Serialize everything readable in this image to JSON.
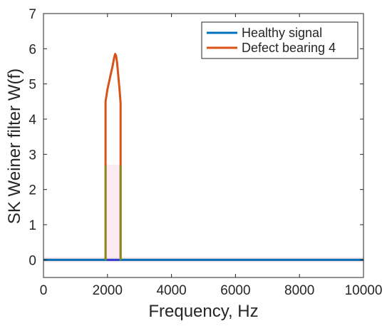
{
  "chart_data": {
    "type": "line",
    "title": "",
    "xlabel": "Frequency, Hz",
    "ylabel": "SK Weiner filter W(f)",
    "xlim": [
      0,
      10000
    ],
    "ylim": [
      -0.5,
      7
    ],
    "xticks": [
      "0",
      "2000",
      "4000",
      "6000",
      "8000",
      "10000"
    ],
    "xtick_values": [
      0,
      2000,
      4000,
      6000,
      8000,
      10000
    ],
    "yticks": [
      "0",
      "1",
      "2",
      "3",
      "4",
      "5",
      "6",
      "7"
    ],
    "ytick_values": [
      0,
      1,
      2,
      3,
      4,
      5,
      6,
      7
    ],
    "grid": false,
    "legend_position": "top-right",
    "series": [
      {
        "name": "Healthy signal",
        "color": "#0072bd",
        "x": [
          0,
          1950,
          1950,
          2420,
          2420,
          10000
        ],
        "y": [
          0,
          0,
          0,
          0,
          0,
          0
        ]
      },
      {
        "name": "Defect bearing 4",
        "color": "#d95319",
        "x": [
          0,
          1940,
          1940,
          2000,
          2060,
          2120,
          2170,
          2210,
          2240,
          2270,
          2300,
          2340,
          2380,
          2410,
          2410,
          10000
        ],
        "y": [
          0,
          0,
          4.5,
          4.85,
          5.1,
          5.35,
          5.55,
          5.75,
          5.85,
          5.8,
          5.6,
          5.2,
          4.8,
          4.45,
          0,
          0
        ]
      }
    ]
  }
}
